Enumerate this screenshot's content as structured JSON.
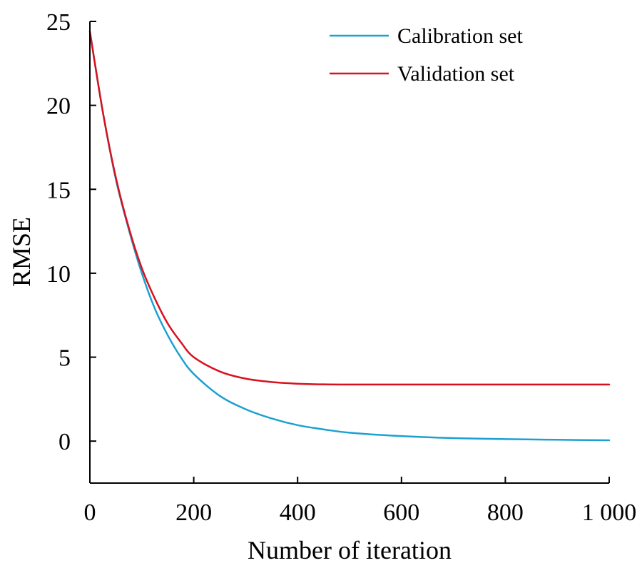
{
  "chart_data": {
    "type": "line",
    "xlabel": "Number of iteration",
    "ylabel": "RMSE",
    "xlim": [
      0,
      1000
    ],
    "ylim": [
      -2.5,
      25
    ],
    "xticks": [
      0,
      200,
      400,
      600,
      800,
      1000
    ],
    "xtick_labels": [
      "0",
      "200",
      "400",
      "600",
      "800",
      "1 000"
    ],
    "yticks": [
      0,
      5,
      10,
      15,
      20,
      25
    ],
    "ytick_labels": [
      "0",
      "5",
      "10",
      "15",
      "20",
      "25"
    ],
    "grid": false,
    "legend_position": "top-right",
    "series": [
      {
        "name": "Calibration set",
        "color": "#1BA1D1",
        "x": [
          0,
          25,
          50,
          75,
          100,
          125,
          150,
          175,
          200,
          250,
          300,
          350,
          400,
          450,
          500,
          600,
          700,
          800,
          900,
          1000
        ],
        "y": [
          24.4,
          19.6,
          15.6,
          12.6,
          10.0,
          7.9,
          6.3,
          5.0,
          4.0,
          2.7,
          1.9,
          1.35,
          0.95,
          0.7,
          0.5,
          0.3,
          0.18,
          0.12,
          0.08,
          0.05
        ]
      },
      {
        "name": "Validation set",
        "color": "#D8111F",
        "x": [
          0,
          25,
          50,
          75,
          100,
          125,
          150,
          175,
          200,
          250,
          300,
          350,
          400,
          450,
          500,
          600,
          700,
          800,
          900,
          1000
        ],
        "y": [
          24.4,
          19.6,
          15.7,
          12.7,
          10.3,
          8.5,
          7.0,
          5.9,
          5.0,
          4.15,
          3.72,
          3.52,
          3.42,
          3.38,
          3.37,
          3.37,
          3.37,
          3.37,
          3.37,
          3.37
        ]
      }
    ]
  }
}
